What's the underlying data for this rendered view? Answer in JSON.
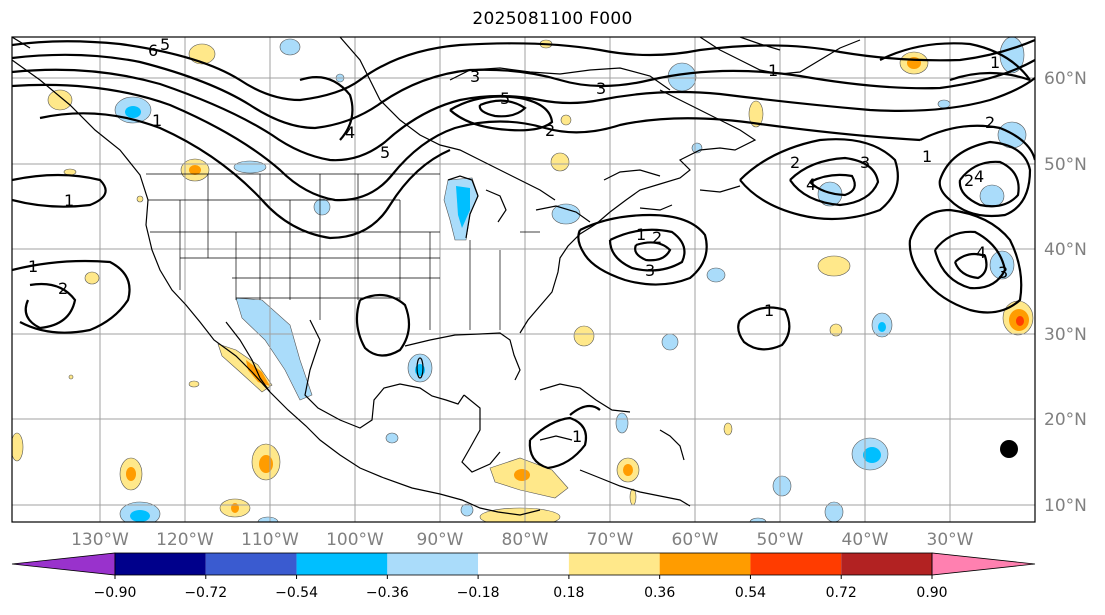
{
  "title": "2025081100 F000",
  "map": {
    "latitude_labels": [
      "60°N",
      "50°N",
      "40°N",
      "30°N",
      "20°N",
      "10°N"
    ],
    "longitude_labels": [
      "130°W",
      "120°W",
      "110°W",
      "100°W",
      "90°W",
      "80°W",
      "70°W",
      "60°W",
      "50°W",
      "40°W",
      "30°W"
    ],
    "contour_labels": [
      "6",
      "5",
      "3",
      "5",
      "4",
      "5",
      "1",
      "1",
      "2",
      "2",
      "3",
      "4",
      "1",
      "2",
      "3",
      "1",
      "2",
      "1",
      "4",
      "2",
      "1",
      "4",
      "3",
      "2",
      "1",
      "3",
      "1",
      "1"
    ]
  },
  "colorbar": {
    "ticks": [
      "−0.90",
      "−0.72",
      "−0.54",
      "−0.36",
      "−0.18",
      "0.18",
      "0.36",
      "0.54",
      "0.72",
      "0.90"
    ],
    "colors": [
      "#9932cc",
      "#00008b",
      "#3a5bd0",
      "#00bfff",
      "#aadcfa",
      "#ffffff",
      "#ffe88a",
      "#ff9c00",
      "#ff3c00",
      "#b22222",
      "#ff80b0"
    ]
  },
  "colors": {
    "pos_light": "#ffe88a",
    "pos_mid": "#ff9c00",
    "pos_strong": "#ff3c00",
    "neg_light": "#aadcfa",
    "neg_mid": "#00bfff",
    "contour": "#000000",
    "grid": "#a0a0a0"
  }
}
